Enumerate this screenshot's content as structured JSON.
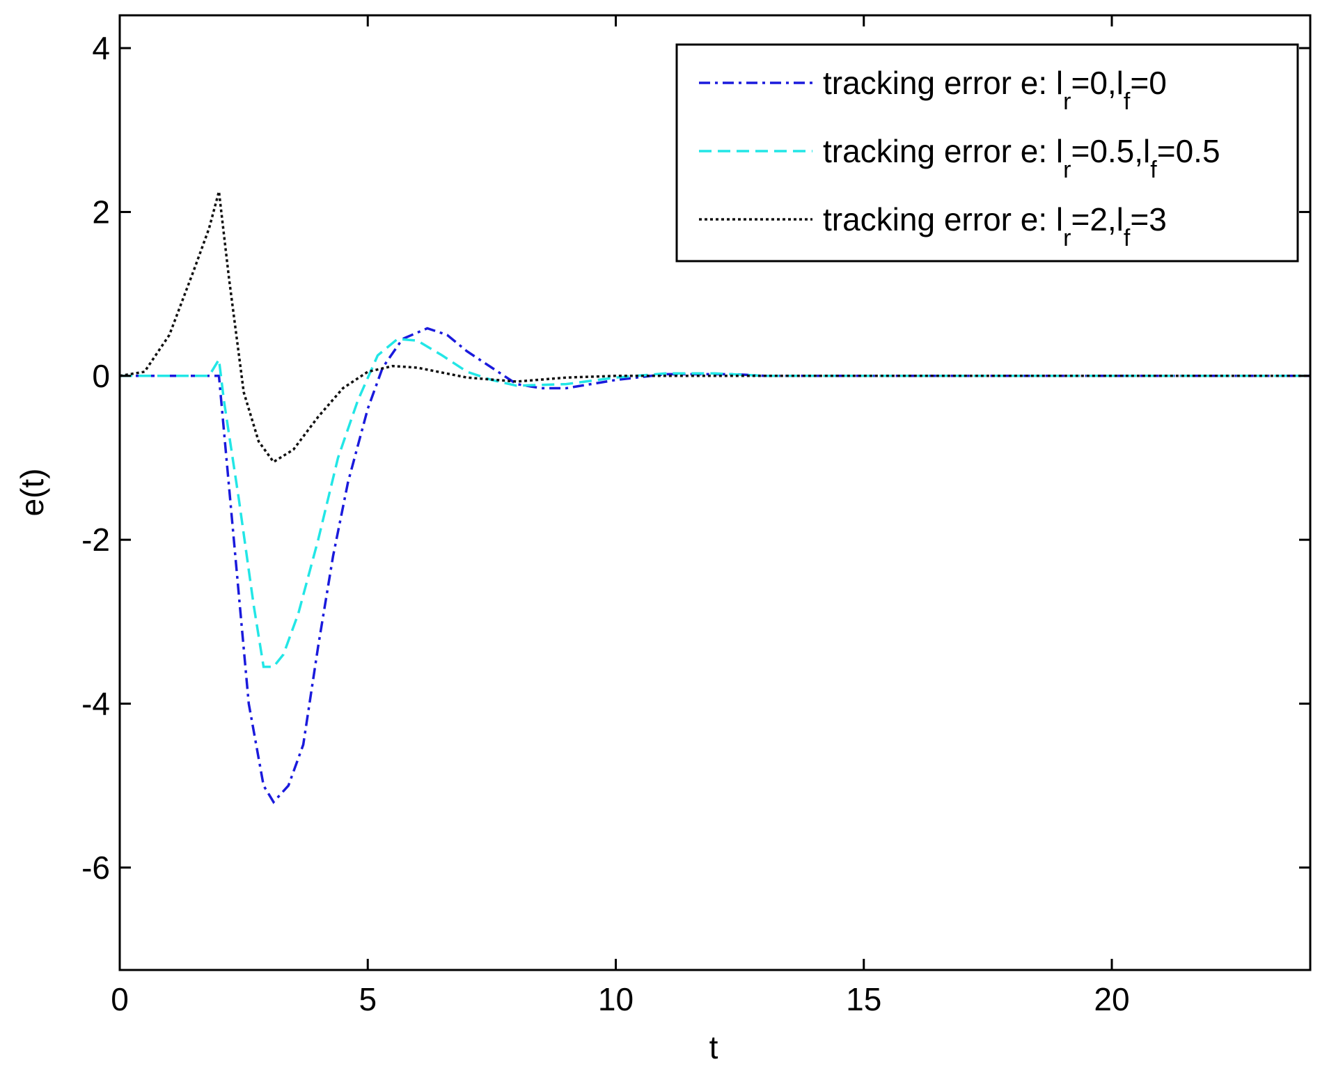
{
  "chart_data": {
    "type": "line",
    "x_label": "t",
    "y_label": "e(t)",
    "xlim": [
      0,
      24
    ],
    "ylim": [
      -7.25,
      4.4
    ],
    "xticks": [
      0,
      5,
      10,
      15,
      20
    ],
    "yticks": [
      -6,
      -4,
      -2,
      0,
      2,
      4
    ],
    "legend": "upper right",
    "series": [
      {
        "name": "tracking error e: lr=0,lf=0",
        "color": "#1a1adc",
        "dash": "dashdot",
        "x": [
          0,
          1.9,
          2.0,
          2.3,
          2.6,
          2.9,
          3.1,
          3.4,
          3.7,
          4.0,
          4.3,
          4.6,
          5.0,
          5.3,
          5.7,
          6.2,
          6.6,
          7.0,
          7.5,
          8.0,
          8.5,
          9.0,
          9.5,
          10,
          11,
          12.4,
          13,
          24
        ],
        "values": [
          0,
          0,
          0,
          -2,
          -4,
          -5,
          -5.2,
          -5,
          -4.5,
          -3.3,
          -2.2,
          -1.3,
          -0.4,
          0.1,
          0.45,
          0.58,
          0.5,
          0.3,
          0.1,
          -0.1,
          -0.15,
          -0.15,
          -0.1,
          -0.05,
          0.02,
          0.02,
          0,
          0
        ]
      },
      {
        "name": "tracking error e: lr=0.5,lf=0.5",
        "color": "#22e6e6",
        "dash": "dashed",
        "x": [
          0,
          1.8,
          2.0,
          2.1,
          2.4,
          2.7,
          2.9,
          3.1,
          3.3,
          3.6,
          4.0,
          4.4,
          4.8,
          5.2,
          5.6,
          6.0,
          6.5,
          7.0,
          7.5,
          8.0,
          9,
          10,
          11,
          12,
          13,
          24
        ],
        "values": [
          0,
          0,
          0.2,
          -0.3,
          -1.5,
          -2.8,
          -3.55,
          -3.55,
          -3.4,
          -2.9,
          -2.0,
          -1.0,
          -0.3,
          0.25,
          0.45,
          0.43,
          0.25,
          0.05,
          -0.05,
          -0.12,
          -0.1,
          -0.02,
          0.03,
          0.03,
          0,
          0
        ]
      },
      {
        "name": "tracking error e: lr=2,lf=3",
        "color": "#111111",
        "dash": "dotted",
        "x": [
          0,
          0.5,
          1.0,
          1.5,
          1.8,
          2.0,
          2.2,
          2.5,
          2.8,
          3.1,
          3.5,
          4.0,
          4.5,
          5.0,
          5.5,
          6.0,
          7.0,
          8.0,
          9,
          10,
          24
        ],
        "values": [
          0,
          0.05,
          0.5,
          1.3,
          1.8,
          2.25,
          1.2,
          -0.2,
          -0.8,
          -1.05,
          -0.9,
          -0.5,
          -0.15,
          0.05,
          0.12,
          0.1,
          -0.02,
          -0.07,
          -0.02,
          0,
          0
        ]
      }
    ]
  }
}
